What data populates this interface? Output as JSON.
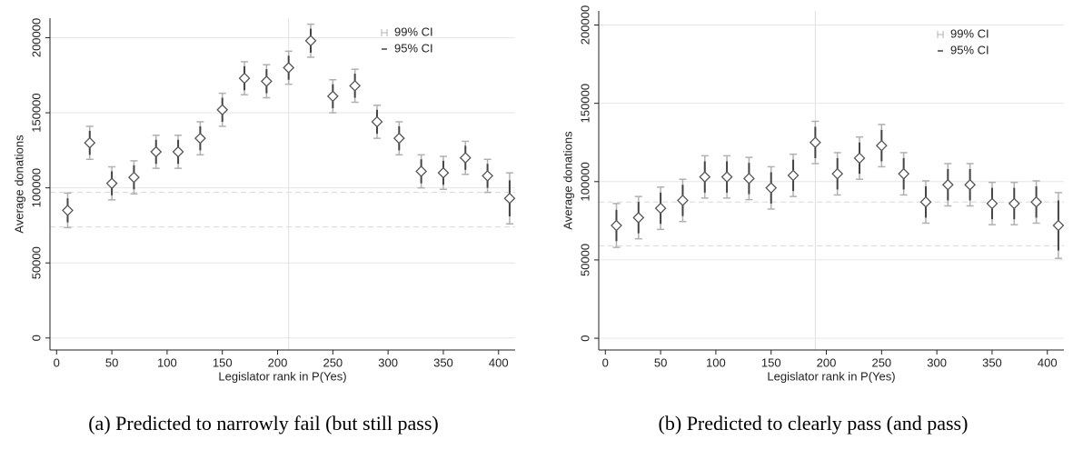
{
  "chart_data": [
    {
      "type": "scatter",
      "caption": "(a) Predicted to narrowly fail (but still pass)",
      "x_label": "Legislator rank in P(Yes)",
      "y_label": "Average donations",
      "x": [
        10,
        30,
        50,
        70,
        90,
        110,
        130,
        150,
        170,
        190,
        210,
        230,
        250,
        270,
        290,
        310,
        330,
        350,
        370,
        390,
        410
      ],
      "values": [
        85000,
        130000,
        103000,
        107000,
        124000,
        124000,
        133000,
        152000,
        173000,
        171000,
        180000,
        198000,
        161000,
        168000,
        144000,
        133000,
        111000,
        110000,
        120000,
        108000,
        93000
      ],
      "ci99": [
        11500,
        11000,
        11000,
        11000,
        11000,
        11000,
        11000,
        11000,
        11000,
        11000,
        11000,
        11000,
        11000,
        11000,
        11000,
        11000,
        11000,
        11000,
        11000,
        11000,
        17000
      ],
      "ci95": [
        8000,
        8000,
        8000,
        8000,
        8000,
        8000,
        8000,
        8000,
        8000,
        8000,
        8000,
        8000,
        8000,
        8000,
        8000,
        8000,
        8000,
        8000,
        8000,
        8000,
        12000
      ],
      "marker_color": "#555555",
      "ci99_color": "#b0b0b0",
      "ci95_color": "#444444",
      "legend": [
        {
          "name": "99% CI",
          "color": "#b0b0b0"
        },
        {
          "name": "95% CI",
          "color": "#444444"
        }
      ],
      "hlines": [
        97000,
        74000
      ],
      "vline": 210,
      "xlim": [
        -6,
        415
      ],
      "xticks": [
        0,
        50,
        100,
        150,
        200,
        250,
        300,
        350,
        400
      ],
      "ylim": [
        -8000,
        213000
      ],
      "yticks": [
        0,
        50000,
        100000,
        150000,
        200000
      ],
      "grid": true
    },
    {
      "type": "scatter",
      "caption": "(b) Predicted to clearly pass (and pass)",
      "x_label": "Legislator rank in P(Yes)",
      "y_label": "Average donations",
      "x": [
        10,
        30,
        50,
        70,
        90,
        110,
        130,
        150,
        170,
        190,
        210,
        230,
        250,
        270,
        290,
        310,
        330,
        350,
        370,
        390,
        410
      ],
      "values": [
        72000,
        77000,
        83000,
        88000,
        103000,
        103000,
        102000,
        96000,
        104000,
        125000,
        105000,
        115000,
        123000,
        105000,
        87000,
        98000,
        98000,
        86000,
        86000,
        87000,
        72000
      ],
      "ci99": [
        14000,
        13500,
        13500,
        13500,
        13500,
        13500,
        13500,
        13500,
        13500,
        13500,
        13500,
        13500,
        13500,
        13500,
        13500,
        13500,
        13500,
        13500,
        13500,
        13500,
        21000
      ],
      "ci95": [
        10000,
        10000,
        10000,
        10000,
        10000,
        10000,
        10000,
        10000,
        10000,
        10000,
        10000,
        10000,
        10000,
        10000,
        10000,
        10000,
        10000,
        10000,
        10000,
        10000,
        16000
      ],
      "marker_color": "#555555",
      "ci99_color": "#b0b0b0",
      "ci95_color": "#444444",
      "legend": [
        {
          "name": "99% CI",
          "color": "#b0b0b0"
        },
        {
          "name": "95% CI",
          "color": "#444444"
        }
      ],
      "hlines": [
        87000,
        59000
      ],
      "vline": 190,
      "xlim": [
        -6,
        415
      ],
      "xticks": [
        0,
        50,
        100,
        150,
        200,
        250,
        300,
        350,
        400
      ],
      "ylim": [
        -7500,
        209000
      ],
      "yticks": [
        0,
        50000,
        100000,
        150000,
        200000
      ],
      "grid": true
    }
  ]
}
